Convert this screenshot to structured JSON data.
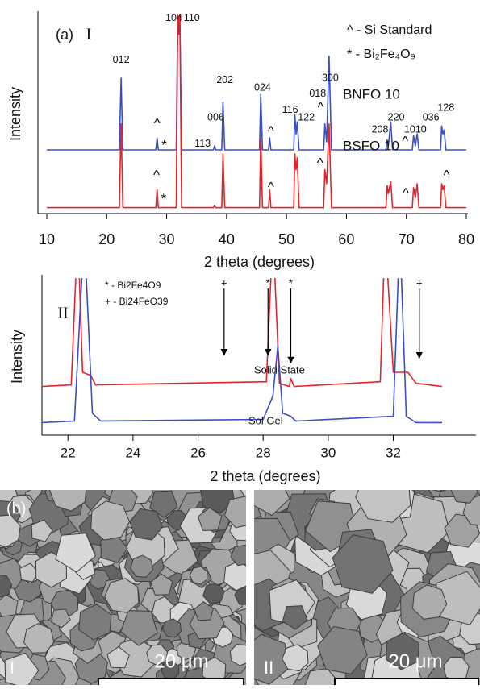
{
  "chart_data": [
    {
      "type": "line",
      "panel": "(a)",
      "numeral": "I",
      "xlabel": "2 theta (degrees)",
      "ylabel": "Intensity",
      "xlim": [
        10,
        80
      ],
      "xticks": [
        10,
        20,
        30,
        40,
        50,
        60,
        70,
        80
      ],
      "ylim": [
        0,
        100
      ],
      "legend": [
        "^ - Si Standard",
        "* - Bi₂Fe₄O₉"
      ],
      "series": [
        {
          "name": "BNFO 10",
          "color": "#3a4fc6",
          "x": [
            10,
            22.1,
            22.4,
            22.7,
            28.2,
            28.4,
            28.6,
            31.6,
            31.85,
            32.0,
            32.2,
            32.5,
            37.8,
            38.0,
            38.2,
            39.2,
            39.4,
            39.7,
            45.5,
            45.7,
            46.0,
            47.0,
            47.2,
            47.4,
            51.2,
            51.4,
            51.6,
            51.8,
            52.1,
            56.2,
            56.4,
            56.7,
            57.1,
            57.5,
            66.6,
            66.8,
            67.0,
            67.4,
            67.7,
            71.0,
            71.2,
            71.5,
            71.8,
            72.1,
            75.7,
            75.9,
            76.1,
            76.3,
            76.6,
            80
          ],
          "values": [
            32,
            32,
            68,
            32,
            32,
            38,
            32,
            32,
            98,
            90,
            100,
            32,
            32,
            34,
            32,
            32,
            56,
            32,
            32,
            60,
            32,
            32,
            38,
            32,
            32,
            50,
            40,
            46,
            32,
            32,
            45,
            36,
            79,
            32,
            32,
            37,
            34,
            46,
            32,
            32,
            39,
            34,
            40,
            32,
            32,
            44,
            40,
            42,
            32,
            32
          ]
        },
        {
          "name": "BSFO 10",
          "color": "#e5232b",
          "x": [
            10,
            22.1,
            22.4,
            22.7,
            28.2,
            28.4,
            28.6,
            31.6,
            31.85,
            32.0,
            32.2,
            32.5,
            37.8,
            38.0,
            38.2,
            39.2,
            39.4,
            39.7,
            45.5,
            45.7,
            46.0,
            47.0,
            47.2,
            47.4,
            51.2,
            51.4,
            51.6,
            51.8,
            52.1,
            56.2,
            56.4,
            56.7,
            57.1,
            57.5,
            66.6,
            66.8,
            67.0,
            67.4,
            67.7,
            71.0,
            71.2,
            71.5,
            71.8,
            72.1,
            75.7,
            75.9,
            76.1,
            76.3,
            76.6,
            80
          ],
          "values": [
            3,
            3,
            45,
            3,
            3,
            12,
            3,
            3,
            100,
            95,
            100,
            3,
            3,
            4,
            3,
            3,
            30,
            3,
            3,
            38,
            3,
            3,
            12,
            3,
            3,
            30,
            22,
            28,
            3,
            3,
            22,
            15,
            45,
            3,
            3,
            14,
            10,
            16,
            3,
            3,
            13,
            8,
            15,
            3,
            3,
            15,
            12,
            14,
            3,
            3
          ]
        }
      ],
      "annotations": [
        {
          "text": "012",
          "x": 22.4,
          "y": 77
        },
        {
          "text": "104",
          "x": 31.2,
          "y": 98
        },
        {
          "text": "110",
          "x": 34.2,
          "y": 98
        },
        {
          "text": "202",
          "x": 39.7,
          "y": 67
        },
        {
          "text": "006",
          "x": 38.2,
          "y": 48
        },
        {
          "text": "113",
          "x": 36.0,
          "y": 35
        },
        {
          "text": "024",
          "x": 46.0,
          "y": 63
        },
        {
          "text": "116",
          "x": 50.6,
          "y": 52
        },
        {
          "text": "122",
          "x": 53.3,
          "y": 48
        },
        {
          "text": "018",
          "x": 55.2,
          "y": 60
        },
        {
          "text": "300",
          "x": 57.3,
          "y": 68
        },
        {
          "text": "208",
          "x": 65.6,
          "y": 42
        },
        {
          "text": "220",
          "x": 68.3,
          "y": 48
        },
        {
          "text": "1010",
          "x": 71.5,
          "y": 42
        },
        {
          "text": "036",
          "x": 74.1,
          "y": 48
        },
        {
          "text": "128",
          "x": 76.6,
          "y": 53
        },
        {
          "text": "^",
          "x": 28.4,
          "y": 45
        },
        {
          "text": "*",
          "x": 29.6,
          "y": 34
        },
        {
          "text": "^",
          "x": 47.4,
          "y": 41
        },
        {
          "text": "^",
          "x": 55.7,
          "y": 53
        },
        {
          "text": "^",
          "x": 69.8,
          "y": 36
        },
        {
          "text": "^",
          "x": 28.3,
          "y": 19
        },
        {
          "text": "*",
          "x": 29.5,
          "y": 7
        },
        {
          "text": "^",
          "x": 47.4,
          "y": 13
        },
        {
          "text": "^",
          "x": 55.6,
          "y": 25
        },
        {
          "text": "^",
          "x": 69.9,
          "y": 10
        },
        {
          "text": "^",
          "x": 76.7,
          "y": 19
        }
      ]
    },
    {
      "type": "line",
      "numeral": "II",
      "xlabel": "2 theta (degrees)",
      "ylabel": "Intensity",
      "xlim": [
        21.2,
        33.5
      ],
      "xticks": [
        22,
        24,
        26,
        28,
        30,
        32
      ],
      "ylim": [
        0,
        100
      ],
      "legend": [
        "* - Bi2Fe4O9",
        "+ - Bi24FeO39"
      ],
      "series": [
        {
          "name": "Solid State",
          "color": "#e5232b",
          "x": [
            21.2,
            22.1,
            22.3,
            22.45,
            22.7,
            22.85,
            28.1,
            28.3,
            28.5,
            28.8,
            28.85,
            28.95,
            31.6,
            31.75,
            32.0,
            32.45,
            32.7,
            33.5
          ],
          "values": [
            31,
            32,
            130,
            40,
            38,
            32,
            34,
            130,
            33,
            31,
            36,
            31,
            34,
            130,
            40,
            40,
            33,
            31
          ]
        },
        {
          "name": "Sol Gel",
          "color": "#3a4fc6",
          "x": [
            21.2,
            22.2,
            22.5,
            22.75,
            23.0,
            28.0,
            28.2,
            28.3,
            28.45,
            28.6,
            28.85,
            29.0,
            32.0,
            32.2,
            32.4,
            32.7,
            33.5
          ],
          "values": [
            8,
            9,
            130,
            14,
            9,
            10,
            20,
            25,
            57,
            14,
            12,
            9,
            12,
            130,
            12,
            8,
            8
          ]
        }
      ],
      "annotations": [
        {
          "text": "+",
          "x": 26.8,
          "y": 51
        },
        {
          "text": "*",
          "x": 28.15,
          "y": 51
        },
        {
          "text": "*",
          "x": 28.85,
          "y": 46
        },
        {
          "text": "+",
          "x": 32.8,
          "y": 49
        }
      ]
    }
  ],
  "sem": {
    "panel": "(b)",
    "images": [
      {
        "label": "I",
        "scale_bar": "20 μm"
      },
      {
        "label": "II",
        "scale_bar": "20 μm"
      }
    ]
  }
}
